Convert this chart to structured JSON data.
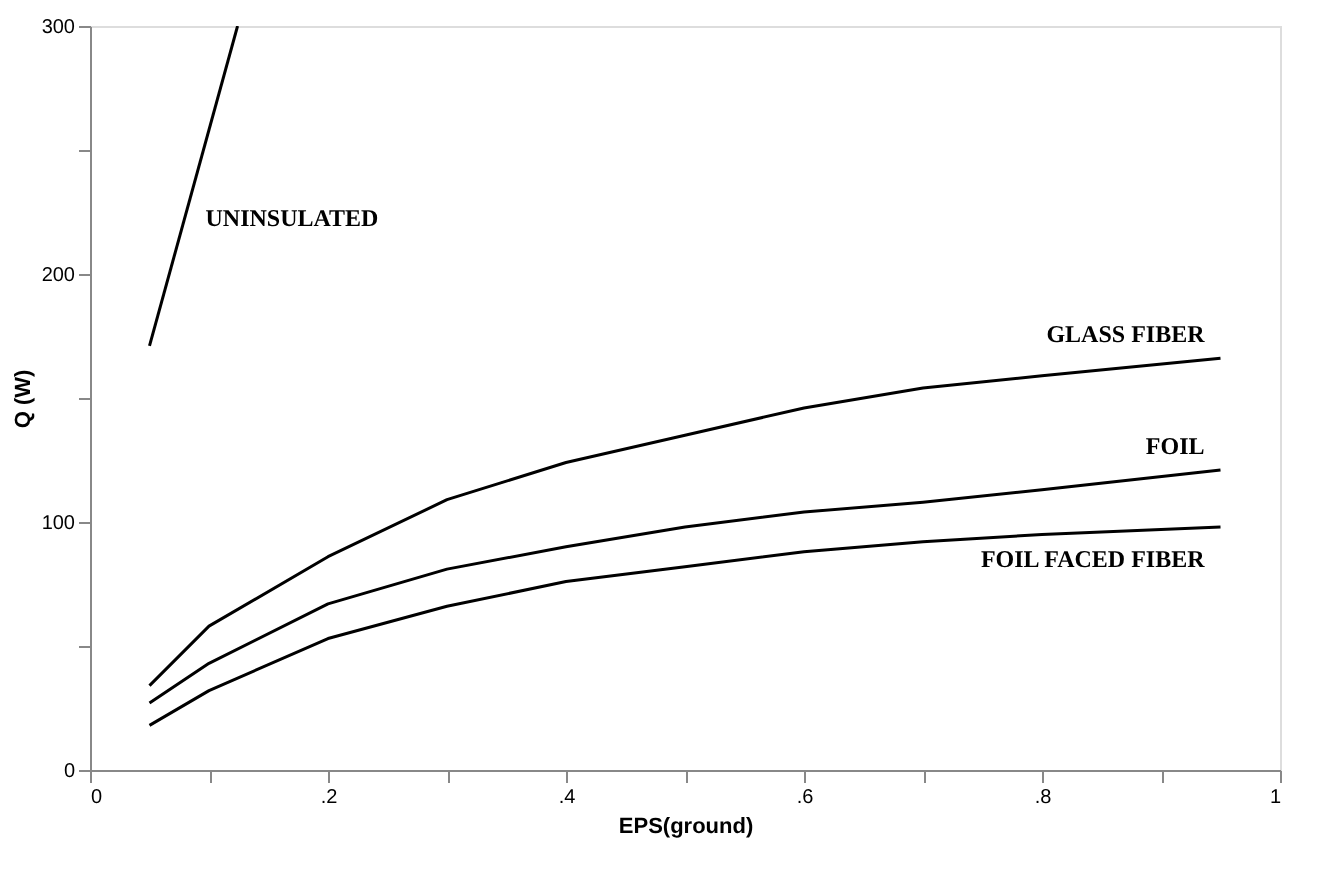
{
  "chart_data": {
    "type": "line",
    "xlabel": "EPS(ground)",
    "ylabel": "Q (W)",
    "xlim": [
      0,
      1
    ],
    "ylim": [
      0,
      300
    ],
    "xticks": [
      {
        "value": 0,
        "label": "0"
      },
      {
        "value": 0.1,
        "label": null
      },
      {
        "value": 0.2,
        "label": ".2"
      },
      {
        "value": 0.3,
        "label": null
      },
      {
        "value": 0.4,
        "label": ".4"
      },
      {
        "value": 0.5,
        "label": null
      },
      {
        "value": 0.6,
        "label": ".6"
      },
      {
        "value": 0.7,
        "label": null
      },
      {
        "value": 0.8,
        "label": ".8"
      },
      {
        "value": 0.9,
        "label": null
      },
      1
    ],
    "yticks": [
      0,
      {
        "value": 50,
        "label": null
      },
      100,
      {
        "value": 150,
        "label": null
      },
      200,
      {
        "value": 250,
        "label": null
      },
      300
    ],
    "grid": false,
    "marker": "none",
    "line_style": "solid",
    "series": [
      {
        "name": "UNINSULATED",
        "color": "#000000",
        "x": [
          0.05,
          0.124
        ],
        "values": [
          171,
          300
        ]
      },
      {
        "name": "GLASS FIBER",
        "color": "#000000",
        "x": [
          0.05,
          0.1,
          0.2,
          0.3,
          0.4,
          0.5,
          0.6,
          0.7,
          0.8,
          0.95
        ],
        "values": [
          34,
          58,
          86,
          109,
          124,
          135,
          146,
          154,
          159,
          166
        ]
      },
      {
        "name": "FOIL",
        "color": "#000000",
        "x": [
          0.05,
          0.1,
          0.2,
          0.3,
          0.4,
          0.5,
          0.6,
          0.7,
          0.8,
          0.95
        ],
        "values": [
          27,
          43,
          67,
          81,
          90,
          98,
          104,
          108,
          113,
          121
        ]
      },
      {
        "name": "FOIL FACED FIBER",
        "color": "#000000",
        "x": [
          0.05,
          0.1,
          0.2,
          0.3,
          0.4,
          0.5,
          0.6,
          0.7,
          0.8,
          0.95
        ],
        "values": [
          18,
          32,
          53,
          66,
          76,
          82,
          88,
          92,
          95,
          98
        ]
      }
    ]
  }
}
